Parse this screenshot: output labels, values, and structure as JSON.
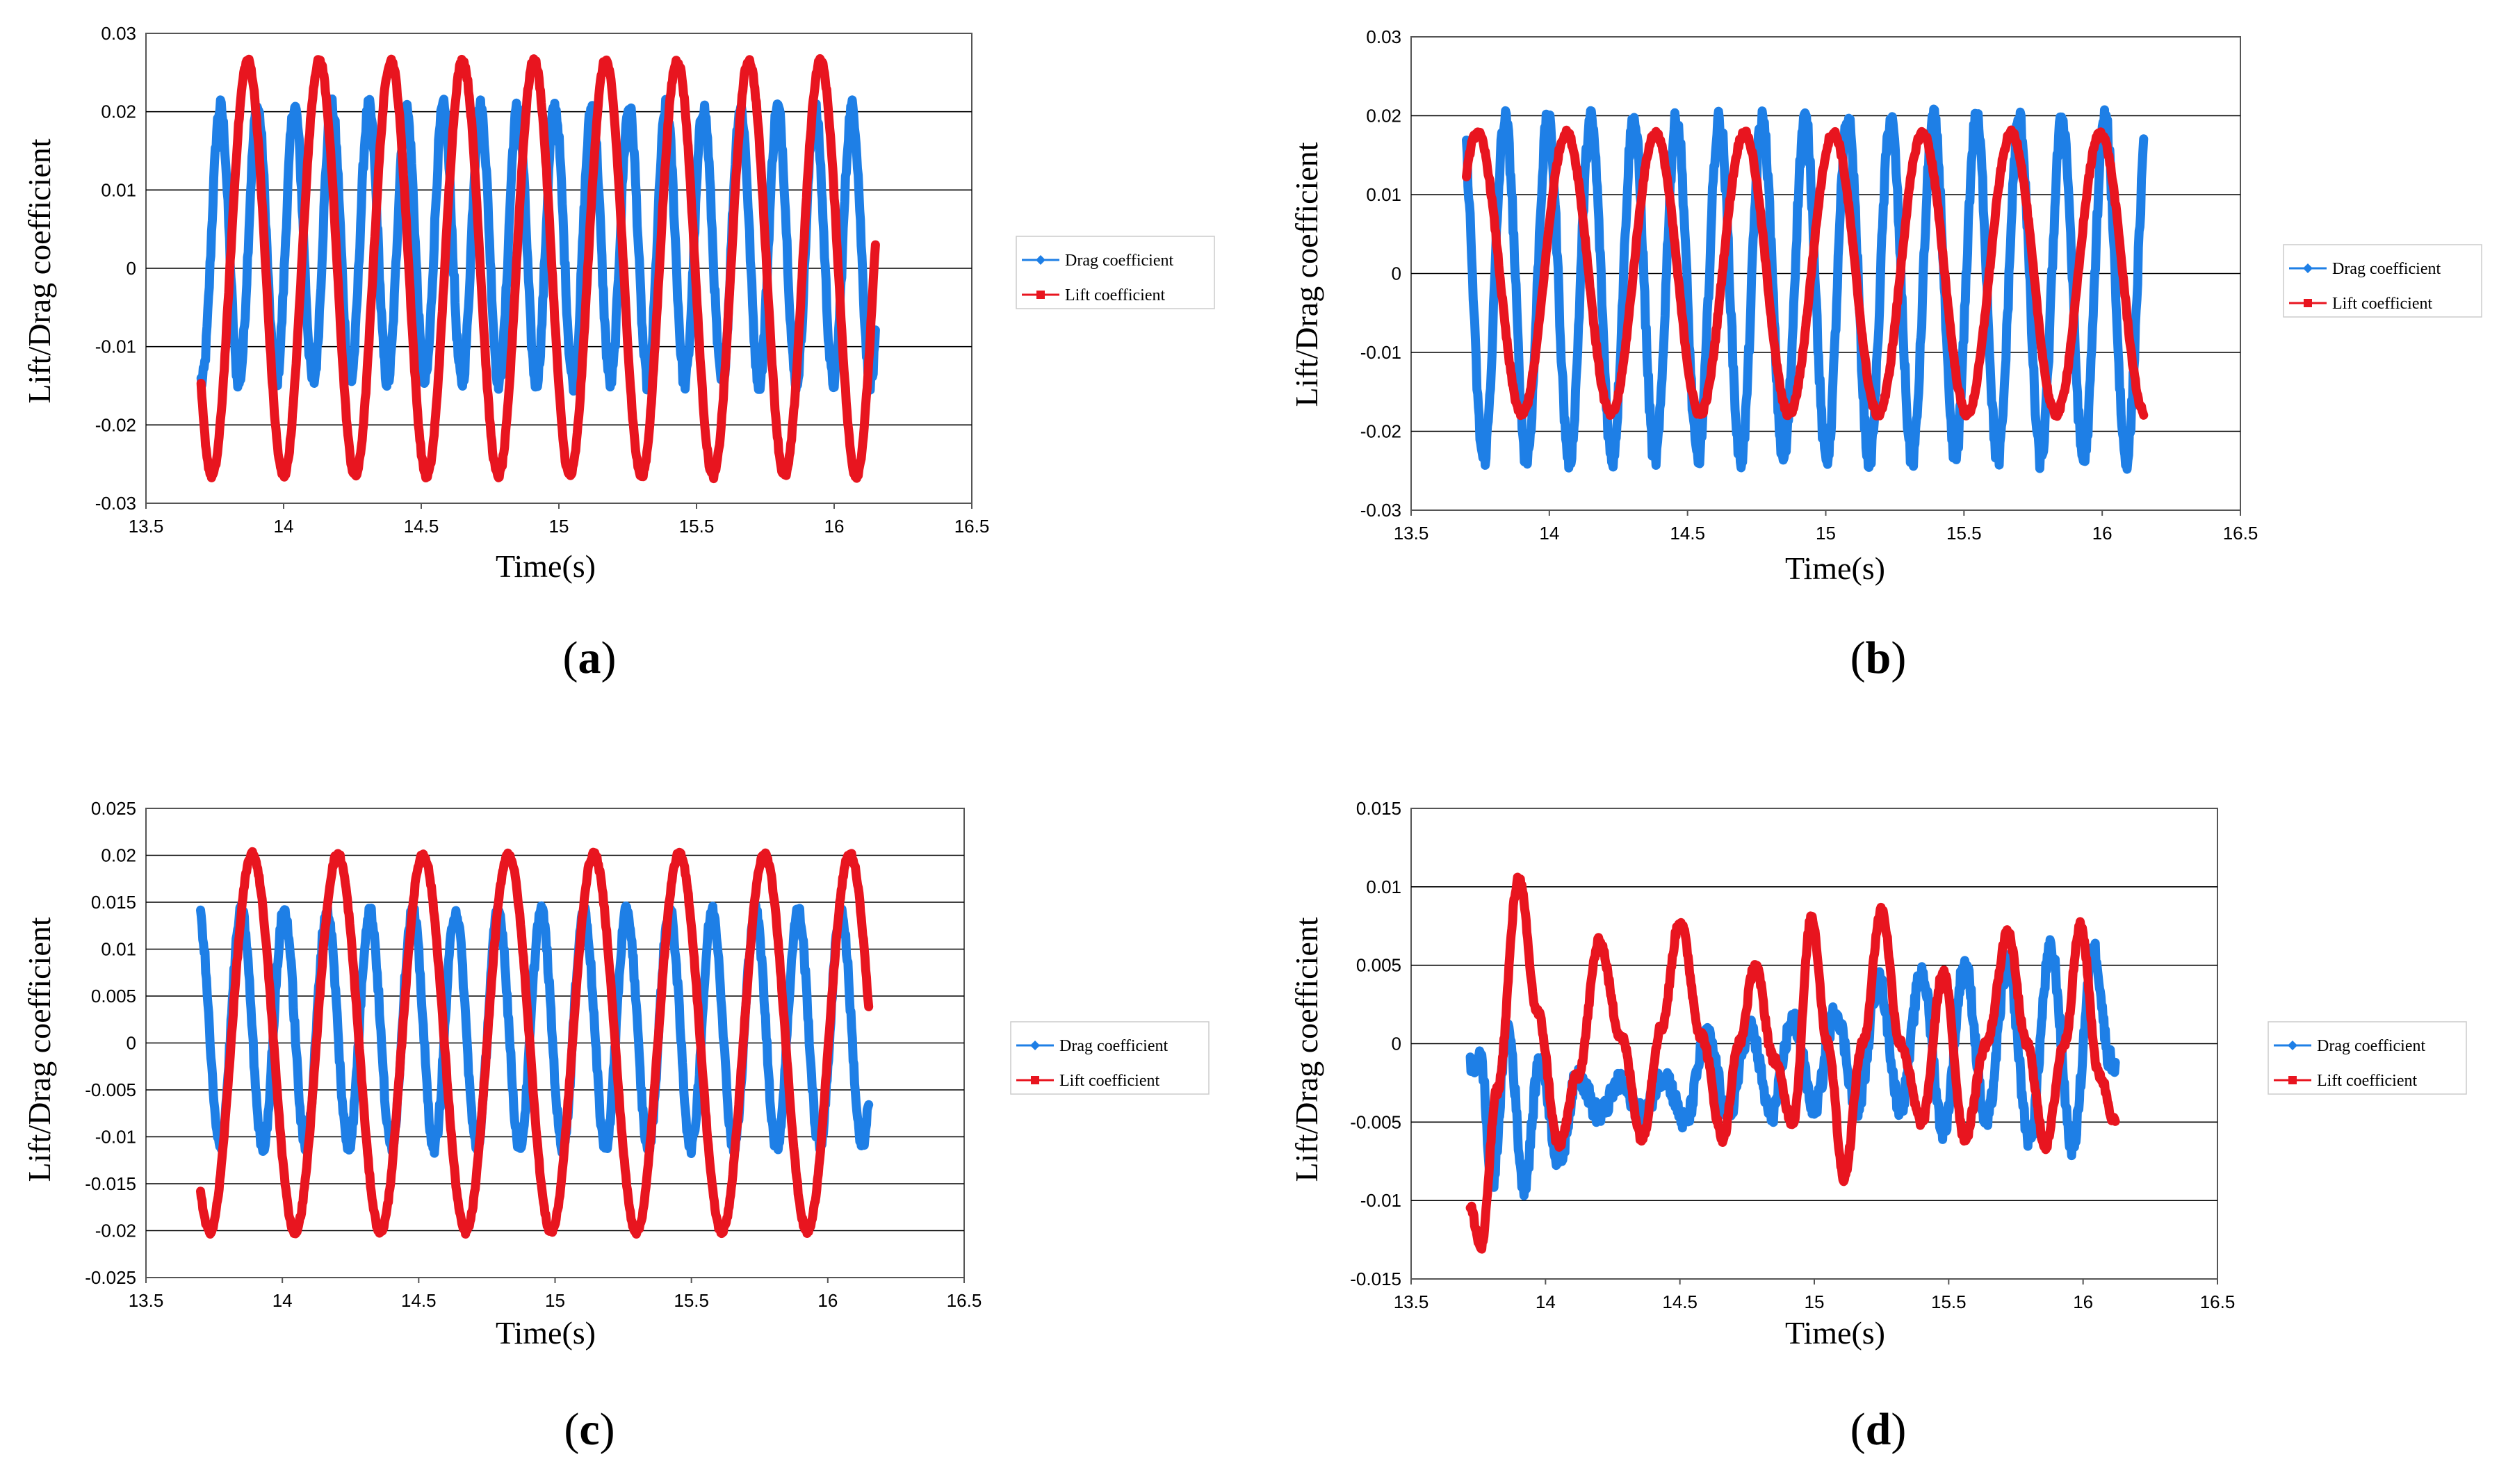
{
  "colors": {
    "drag": "#1e7fe6",
    "lift": "#e8151f",
    "grid": "#000000",
    "frame": "#555555"
  },
  "chart_data": [
    {
      "type": "line",
      "caption": "a",
      "xlabel": "Time(s)",
      "ylabel": "Lift/Drag  coefficient",
      "xlim": [
        13.5,
        16.5
      ],
      "xticks": [
        "13.5",
        "14",
        "14.5",
        "15",
        "15.5",
        "16",
        "16.5"
      ],
      "ylim": [
        -0.03,
        0.03
      ],
      "yticks": [
        "0.03",
        "0.02",
        "0.01",
        "0",
        "-0.01",
        "-0.02",
        "-0.03"
      ],
      "legend": "right",
      "series": [
        {
          "name": "Drag coefficient",
          "color": "#1e7fe6",
          "t_start": 13.7,
          "t_end": 16.15,
          "center": 0.003,
          "amp": 0.0175,
          "period": 0.135,
          "phase": 0.0,
          "noise": 0.0012
        },
        {
          "name": "Lift coefficient",
          "color": "#e8151f",
          "t_start": 13.7,
          "t_end": 16.15,
          "center": 0.0,
          "amp": 0.0265,
          "period": 0.26,
          "phase": 13.87,
          "noise": 0.0004
        }
      ]
    },
    {
      "type": "line",
      "caption": "b",
      "xlabel": "Time(s)",
      "ylabel": "Lift/Drag  coefficient",
      "xlim": [
        13.5,
        16.5
      ],
      "xticks": [
        "13.5",
        "14",
        "14.5",
        "15",
        "15.5",
        "16",
        "16.5"
      ],
      "ylim": [
        -0.03,
        0.03
      ],
      "yticks": [
        "0.03",
        "0.02",
        "0.01",
        "0",
        "-0.01",
        "-0.02",
        "-0.03"
      ],
      "legend": "right",
      "series": [
        {
          "name": "Drag coefficient",
          "color": "#1e7fe6",
          "t_start": 13.7,
          "t_end": 16.15,
          "center": -0.002,
          "amp": 0.0215,
          "period": 0.155,
          "phase": 13.84,
          "noise": 0.0015
        },
        {
          "name": "Lift coefficient",
          "color": "#e8151f",
          "t_start": 13.7,
          "t_end": 16.15,
          "center": 0.0,
          "amp": 0.0178,
          "period": 0.322,
          "phase": 13.74,
          "noise": 0.0004
        }
      ]
    },
    {
      "type": "line",
      "caption": "c",
      "xlabel": "Time(s)",
      "ylabel": "Lift/Drag  coefficient",
      "xlim": [
        13.5,
        16.5
      ],
      "xticks": [
        "13.5",
        "14",
        "14.5",
        "15",
        "15.5",
        "16",
        "16.5"
      ],
      "ylim": [
        -0.025,
        0.025
      ],
      "yticks": [
        "0.025",
        "0.02",
        "0.015",
        "0.01",
        "0.005",
        "0",
        "-0.005",
        "-0.01",
        "-0.015",
        "-0.02",
        "-0.025"
      ],
      "legend": "right",
      "series": [
        {
          "name": "Drag coefficient",
          "color": "#1e7fe6",
          "t_start": 13.7,
          "t_end": 16.15,
          "center": 0.0015,
          "amp": 0.0125,
          "period": 0.157,
          "phase": 13.85,
          "noise": 0.0008
        },
        {
          "name": "Lift coefficient",
          "color": "#e8151f",
          "t_start": 13.7,
          "t_end": 16.15,
          "center": 0.0,
          "amp": 0.0201,
          "period": 0.313,
          "phase": 13.89,
          "noise": 0.0003
        }
      ]
    },
    {
      "type": "line",
      "caption": "d",
      "xlabel": "Time(s)",
      "ylabel": "Lift/Drag  coefficient",
      "xlim": [
        13.5,
        16.5
      ],
      "xticks": [
        "13.5",
        "14",
        "14.5",
        "15",
        "15.5",
        "16",
        "16.5"
      ],
      "ylim": [
        -0.015,
        0.015
      ],
      "yticks": [
        "0.015",
        "0.01",
        "0.005",
        "0",
        "-0.005",
        "-0.01",
        "-0.015"
      ],
      "legend": "right",
      "series": [
        {
          "name": "Drag coefficient",
          "color": "#1e7fe6",
          "t_start": 13.72,
          "t_end": 16.12,
          "points": [
            [
              13.72,
              -0.0015
            ],
            [
              13.76,
              -0.001
            ],
            [
              13.8,
              -0.009
            ],
            [
              13.86,
              0.001
            ],
            [
              13.92,
              -0.009
            ],
            [
              13.98,
              -0.001
            ],
            [
              14.05,
              -0.0075
            ],
            [
              14.12,
              -0.002
            ],
            [
              14.2,
              -0.0045
            ],
            [
              14.28,
              -0.0025
            ],
            [
              14.36,
              -0.0045
            ],
            [
              14.44,
              -0.002
            ],
            [
              14.52,
              -0.005
            ],
            [
              14.6,
              0.0005
            ],
            [
              14.68,
              -0.0045
            ],
            [
              14.76,
              0.001
            ],
            [
              14.84,
              -0.0045
            ],
            [
              14.92,
              0.0015
            ],
            [
              15.0,
              -0.004
            ],
            [
              15.08,
              0.002
            ],
            [
              15.16,
              -0.004
            ],
            [
              15.24,
              0.004
            ],
            [
              15.32,
              -0.004
            ],
            [
              15.4,
              0.0045
            ],
            [
              15.48,
              -0.0055
            ],
            [
              15.56,
              0.005
            ],
            [
              15.64,
              -0.005
            ],
            [
              15.72,
              0.005
            ],
            [
              15.8,
              -0.006
            ],
            [
              15.88,
              0.006
            ],
            [
              15.96,
              -0.0065
            ],
            [
              16.04,
              0.006
            ],
            [
              16.1,
              -0.001
            ],
            [
              16.12,
              -0.0015
            ]
          ],
          "noise": 0.0007
        },
        {
          "name": "Lift coefficient",
          "color": "#e8151f",
          "t_start": 13.72,
          "t_end": 16.12,
          "points": [
            [
              13.72,
              -0.0105
            ],
            [
              13.76,
              -0.013
            ],
            [
              13.82,
              -0.003
            ],
            [
              13.9,
              0.0105
            ],
            [
              13.97,
              0.002
            ],
            [
              14.05,
              -0.0065
            ],
            [
              14.12,
              -0.002
            ],
            [
              14.2,
              0.0065
            ],
            [
              14.28,
              0.0005
            ],
            [
              14.36,
              -0.006
            ],
            [
              14.43,
              0.001
            ],
            [
              14.5,
              0.0078
            ],
            [
              14.58,
              0.0005
            ],
            [
              14.66,
              -0.006
            ],
            [
              14.72,
              0.0
            ],
            [
              14.78,
              0.005
            ],
            [
              14.85,
              -0.001
            ],
            [
              14.92,
              -0.005
            ],
            [
              14.99,
              0.008
            ],
            [
              15.05,
              0.0
            ],
            [
              15.11,
              -0.0085
            ],
            [
              15.18,
              0.0
            ],
            [
              15.25,
              0.0085
            ],
            [
              15.32,
              0.0
            ],
            [
              15.4,
              -0.005
            ],
            [
              15.48,
              0.0045
            ],
            [
              15.56,
              -0.006
            ],
            [
              15.64,
              0.0
            ],
            [
              15.72,
              0.007
            ],
            [
              15.79,
              0.0
            ],
            [
              15.86,
              -0.0065
            ],
            [
              15.93,
              0.0
            ],
            [
              15.99,
              0.0075
            ],
            [
              16.06,
              -0.002
            ],
            [
              16.12,
              -0.005
            ]
          ],
          "noise": 0.0003
        }
      ]
    }
  ]
}
